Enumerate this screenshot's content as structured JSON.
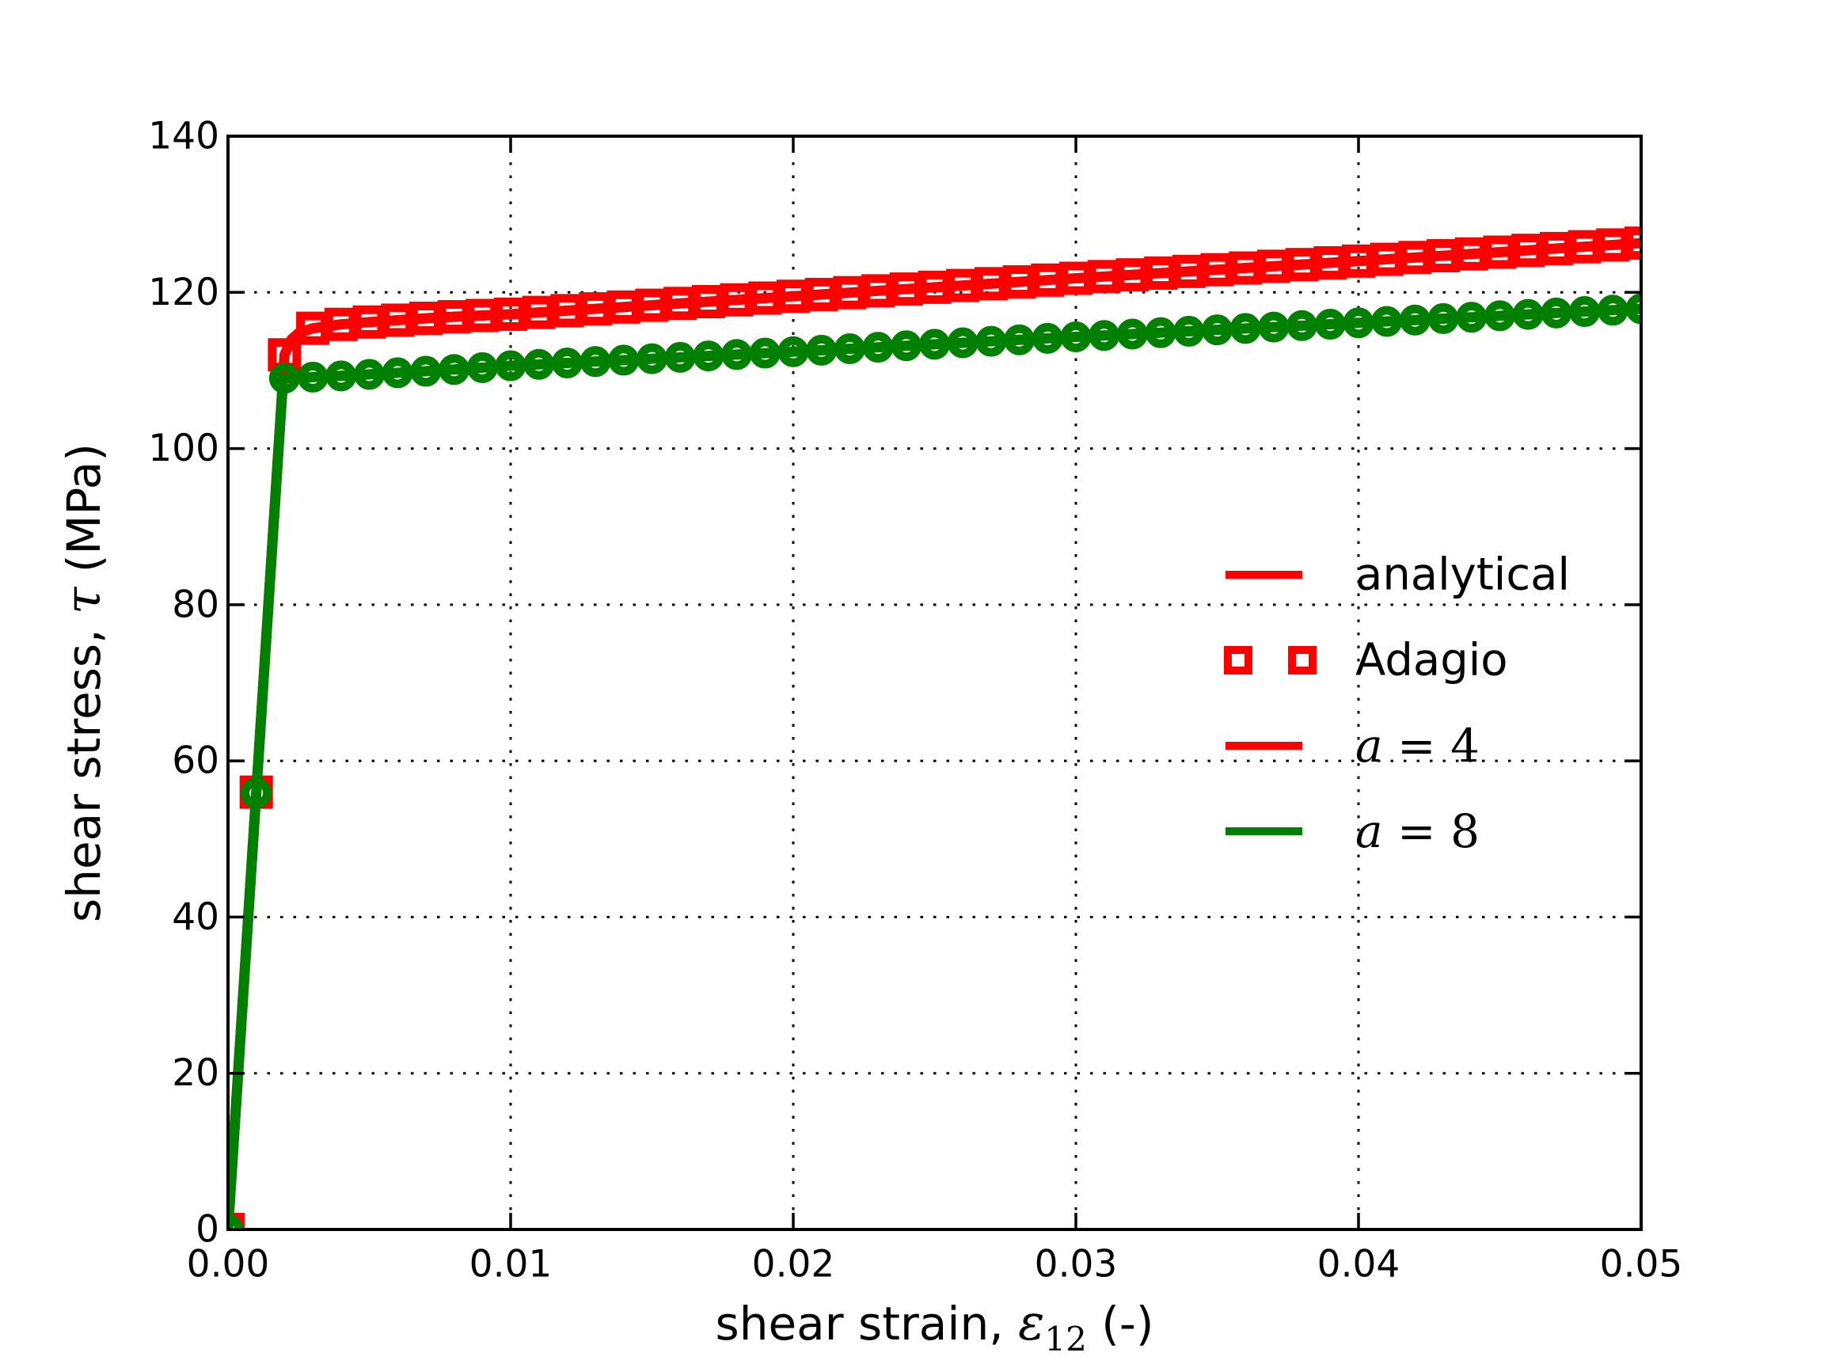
{
  "figure": {
    "background": "#ffffff",
    "axes_color": "#000000"
  },
  "chart_data": {
    "type": "line",
    "title": "",
    "xlabel": {
      "prefix": "shear strain, ",
      "symbol": "ε",
      "subscript": "12",
      "suffix": " (-)"
    },
    "ylabel": {
      "prefix": "shear stress, ",
      "symbol": "τ",
      "suffix": " (MPa)"
    },
    "xlim": [
      0.0,
      0.05
    ],
    "ylim": [
      0,
      140
    ],
    "xticks": {
      "values": [
        0.0,
        0.01,
        0.02,
        0.03,
        0.04,
        0.05
      ],
      "labels": [
        "0.00",
        "0.01",
        "0.02",
        "0.03",
        "0.04",
        "0.05"
      ]
    },
    "yticks": {
      "values": [
        0,
        20,
        40,
        60,
        80,
        100,
        120,
        140
      ],
      "labels": [
        "0",
        "20",
        "40",
        "60",
        "80",
        "100",
        "120",
        "140"
      ]
    },
    "grid": {
      "show": true,
      "style": "dotted",
      "color": "#000000"
    },
    "legend": {
      "frame": false,
      "position": "center-right",
      "entries": [
        {
          "label": "analytical",
          "color": "#ff0000",
          "sample": "line",
          "font": "sans"
        },
        {
          "label": "Adagio",
          "color": "#ff0000",
          "sample": "squares",
          "font": "sans"
        },
        {
          "label_var": "a",
          "label_eq": "=",
          "label_val": "4",
          "color": "#ff0000",
          "sample": "line",
          "font": "math"
        },
        {
          "label_var": "a",
          "label_eq": "=",
          "label_val": "8",
          "color": "#008000",
          "sample": "line",
          "font": "math"
        }
      ]
    },
    "series": [
      {
        "name": "a = 4 (analytical line with Adagio square markers)",
        "color": "#ff0000",
        "marker": "square",
        "marker_strain_step": 0.001,
        "line_points": [
          [
            0.0,
            0.0
          ],
          [
            0.002,
            112.0
          ],
          [
            0.00225,
            114.0
          ],
          [
            0.0025,
            114.8
          ],
          [
            0.003,
            115.4
          ],
          [
            0.004,
            115.9
          ],
          [
            0.005,
            116.2
          ],
          [
            0.0075,
            116.8
          ],
          [
            0.01,
            117.2
          ],
          [
            0.02,
            119.5
          ],
          [
            0.03,
            121.8
          ],
          [
            0.04,
            124.0
          ],
          [
            0.05,
            126.3
          ]
        ]
      },
      {
        "name": "a = 8 (analytical line with Adagio circle markers)",
        "color": "#008000",
        "marker": "circle",
        "marker_strain_step": 0.001,
        "line_points": [
          [
            0.0,
            0.0
          ],
          [
            0.00195,
            109.0
          ],
          [
            0.0025,
            109.05
          ],
          [
            0.003,
            109.15
          ],
          [
            0.004,
            109.3
          ],
          [
            0.005,
            109.5
          ],
          [
            0.0075,
            110.0
          ],
          [
            0.01,
            110.6
          ],
          [
            0.02,
            112.4
          ],
          [
            0.03,
            114.3
          ],
          [
            0.04,
            116.1
          ],
          [
            0.05,
            117.9
          ]
        ]
      }
    ]
  }
}
